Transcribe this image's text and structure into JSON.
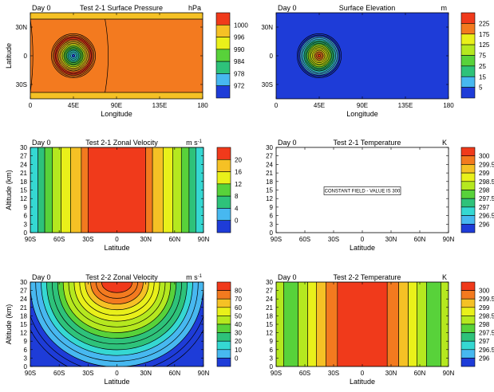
{
  "chart_data": [
    {
      "type": "contour",
      "panel_label": "Day 0",
      "title": "Test 2-1 Surface Pressure",
      "units": "hPa",
      "xlabel": "Longitude",
      "ylabel": "Latitude",
      "xlim": [
        0,
        180
      ],
      "ylim": [
        -45,
        45
      ],
      "x_ticks": [
        {
          "value": 0,
          "label": "0"
        },
        {
          "value": 45,
          "label": "45E"
        },
        {
          "value": 90,
          "label": "90E"
        },
        {
          "value": 135,
          "label": "135E"
        },
        {
          "value": 180,
          "label": "180"
        }
      ],
      "y_ticks": [
        {
          "value": 30,
          "label": "30N"
        },
        {
          "value": 0,
          "label": "0"
        },
        {
          "value": -30,
          "label": "30S"
        }
      ],
      "colorbar": {
        "labels": [
          "1000",
          "996",
          "990",
          "984",
          "978",
          "972"
        ],
        "colors": [
          "#f03a1b",
          "#f37a1f",
          "#f5c125",
          "#e9f01a",
          "#b5e81f",
          "#58d23a",
          "#2ec27a",
          "#35d8d2",
          "#47b8f0",
          "#1e3cd8"
        ]
      },
      "field": {
        "background_value": 1002,
        "background_color": "#f37a1f",
        "mountain_center": [
          45,
          0
        ],
        "radius_deg": 20,
        "min_value": 970
      }
    },
    {
      "type": "contour",
      "panel_label": "Day 0",
      "title": "Surface Elevation",
      "units": "m",
      "xlabel": "Longitude",
      "ylabel": "",
      "xlim": [
        0,
        180
      ],
      "ylim": [
        -45,
        45
      ],
      "x_ticks": [
        {
          "value": 0,
          "label": "0"
        },
        {
          "value": 45,
          "label": "45E"
        },
        {
          "value": 90,
          "label": "90E"
        },
        {
          "value": 135,
          "label": "135E"
        },
        {
          "value": 180,
          "label": "180"
        }
      ],
      "y_ticks": [
        {
          "value": 30,
          "label": "30N"
        },
        {
          "value": 0,
          "label": "0"
        },
        {
          "value": -30,
          "label": "30S"
        }
      ],
      "colorbar": {
        "labels": [
          "225",
          "175",
          "125",
          "75",
          "25",
          "15",
          "5"
        ],
        "colors": [
          "#f03a1b",
          "#f37a1f",
          "#f5c125",
          "#e9f01a",
          "#b5e81f",
          "#58d23a",
          "#2ec27a",
          "#35d8d2",
          "#47b8f0",
          "#1e3cd8"
        ]
      },
      "field": {
        "background_value": 0,
        "background_color": "#1e3cd8",
        "mountain_center": [
          45,
          0
        ],
        "radius_deg": 20,
        "max_value": 250
      }
    },
    {
      "type": "vertical_contour",
      "panel_label": "Day 0",
      "title": "Test 2-1 Zonal Velocity",
      "units": "m s",
      "units_exponent": "-1",
      "xlabel": "Latitude",
      "ylabel": "Altitude (km)",
      "xlim": [
        -90,
        90
      ],
      "ylim": [
        0,
        30
      ],
      "x_ticks": [
        {
          "value": -90,
          "label": "90S"
        },
        {
          "value": -60,
          "label": "60S"
        },
        {
          "value": -30,
          "label": "30S"
        },
        {
          "value": 0,
          "label": "0"
        },
        {
          "value": 30,
          "label": "30N"
        },
        {
          "value": 60,
          "label": "60N"
        },
        {
          "value": 90,
          "label": "90N"
        }
      ],
      "y_ticks": [
        0,
        3,
        6,
        9,
        12,
        15,
        18,
        21,
        24,
        27,
        30
      ],
      "colorbar": {
        "labels": [
          "20",
          "16",
          "12",
          "8",
          "4",
          "0"
        ],
        "colors": [
          "#f03a1b",
          "#f37a1f",
          "#f5c125",
          "#e9f01a",
          "#b5e81f",
          "#58d23a",
          "#2ec27a",
          "#35d8d2",
          "#47b8f0",
          "#1e3cd8"
        ]
      },
      "bands": [
        {
          "from": -90,
          "to": -82,
          "color": "#35d8d2"
        },
        {
          "from": -82,
          "to": -75,
          "color": "#2ec27a"
        },
        {
          "from": -75,
          "to": -67,
          "color": "#58d23a"
        },
        {
          "from": -67,
          "to": -58,
          "color": "#b5e81f"
        },
        {
          "from": -58,
          "to": -48,
          "color": "#e9f01a"
        },
        {
          "from": -48,
          "to": -37,
          "color": "#f5c125"
        },
        {
          "from": -37,
          "to": -30,
          "color": "#f37a1f"
        },
        {
          "from": -30,
          "to": 30,
          "color": "#f03a1b"
        },
        {
          "from": 30,
          "to": 37,
          "color": "#f37a1f"
        },
        {
          "from": 37,
          "to": 48,
          "color": "#f5c125"
        },
        {
          "from": 48,
          "to": 58,
          "color": "#e9f01a"
        },
        {
          "from": 58,
          "to": 67,
          "color": "#b5e81f"
        },
        {
          "from": 67,
          "to": 75,
          "color": "#58d23a"
        },
        {
          "from": 75,
          "to": 82,
          "color": "#2ec27a"
        },
        {
          "from": 82,
          "to": 90,
          "color": "#35d8d2"
        }
      ]
    },
    {
      "type": "vertical_contour",
      "panel_label": "Day 0",
      "title": "Test 2-1 Temperature",
      "units": "K",
      "xlabel": "Latitude",
      "ylabel": "",
      "xlim": [
        -90,
        90
      ],
      "ylim": [
        0,
        30
      ],
      "x_ticks": [
        {
          "value": -90,
          "label": "90S"
        },
        {
          "value": -60,
          "label": "60S"
        },
        {
          "value": -30,
          "label": "30S"
        },
        {
          "value": 0,
          "label": "0"
        },
        {
          "value": 30,
          "label": "30N"
        },
        {
          "value": 60,
          "label": "60N"
        },
        {
          "value": 90,
          "label": "90N"
        }
      ],
      "y_ticks": [
        0,
        3,
        6,
        9,
        12,
        15,
        18,
        21,
        24,
        27,
        30
      ],
      "colorbar": {
        "labels": [
          "300",
          "299.5",
          "299",
          "298.5",
          "298",
          "297.5",
          "297",
          "296.5",
          "296"
        ],
        "colors": [
          "#f03a1b",
          "#f37a1f",
          "#f5c125",
          "#e9f01a",
          "#b5e81f",
          "#58d23a",
          "#2ec27a",
          "#35d8d2",
          "#47b8f0",
          "#1e3cd8"
        ]
      },
      "annotation": "CONSTANT FIELD - VALUE IS 300",
      "constant_value": 300
    },
    {
      "type": "vertical_contour",
      "panel_label": "Day 0",
      "title": "Test 2-2 Zonal Velocity",
      "units": "m s",
      "units_exponent": "-1",
      "xlabel": "Latitude",
      "ylabel": "Altitude (km)",
      "xlim": [
        -90,
        90
      ],
      "ylim": [
        0,
        30
      ],
      "x_ticks": [
        {
          "value": -90,
          "label": "90S"
        },
        {
          "value": -60,
          "label": "60S"
        },
        {
          "value": -30,
          "label": "30S"
        },
        {
          "value": 0,
          "label": "0"
        },
        {
          "value": 30,
          "label": "30N"
        },
        {
          "value": 60,
          "label": "60N"
        },
        {
          "value": 90,
          "label": "90N"
        }
      ],
      "y_ticks": [
        0,
        3,
        6,
        9,
        12,
        15,
        18,
        21,
        24,
        27,
        30
      ],
      "colorbar": {
        "labels": [
          "80",
          "70",
          "60",
          "50",
          "40",
          "30",
          "20",
          "10",
          "0"
        ],
        "colors": [
          "#f03a1b",
          "#f37a1f",
          "#f5c125",
          "#e9f01a",
          "#b5e81f",
          "#58d23a",
          "#2ec27a",
          "#35d8d2",
          "#47b8f0",
          "#1e3cd8"
        ]
      },
      "max_value": 85
    },
    {
      "type": "vertical_contour",
      "panel_label": "Day 0",
      "title": "Test 2-2 Temperature",
      "units": "K",
      "xlabel": "Latitude",
      "ylabel": "",
      "xlim": [
        -90,
        90
      ],
      "ylim": [
        0,
        30
      ],
      "x_ticks": [
        {
          "value": -90,
          "label": "90S"
        },
        {
          "value": -60,
          "label": "60S"
        },
        {
          "value": -30,
          "label": "30S"
        },
        {
          "value": 0,
          "label": "0"
        },
        {
          "value": 30,
          "label": "30N"
        },
        {
          "value": 60,
          "label": "60N"
        },
        {
          "value": 90,
          "label": "90N"
        }
      ],
      "y_ticks": [
        0,
        3,
        6,
        9,
        12,
        15,
        18,
        21,
        24,
        27,
        30
      ],
      "colorbar": {
        "labels": [
          "300",
          "299.5",
          "299",
          "298.5",
          "298",
          "297.5",
          "297",
          "296.5",
          "296"
        ],
        "colors": [
          "#f03a1b",
          "#f37a1f",
          "#f5c125",
          "#e9f01a",
          "#b5e81f",
          "#58d23a",
          "#2ec27a",
          "#35d8d2",
          "#47b8f0",
          "#1e3cd8"
        ]
      },
      "bands": [
        {
          "from": -90,
          "to": -82,
          "color": "#b5e81f"
        },
        {
          "from": -82,
          "to": -67,
          "color": "#58d23a"
        },
        {
          "from": -67,
          "to": -57,
          "color": "#b5e81f"
        },
        {
          "from": -57,
          "to": -48,
          "color": "#e9f01a"
        },
        {
          "from": -48,
          "to": -38,
          "color": "#f5c125"
        },
        {
          "from": -38,
          "to": -26,
          "color": "#f37a1f"
        },
        {
          "from": -26,
          "to": 26,
          "color": "#f03a1b"
        },
        {
          "from": 26,
          "to": 38,
          "color": "#f37a1f"
        },
        {
          "from": 38,
          "to": 48,
          "color": "#f5c125"
        },
        {
          "from": 48,
          "to": 57,
          "color": "#e9f01a"
        },
        {
          "from": 57,
          "to": 67,
          "color": "#b5e81f"
        },
        {
          "from": 67,
          "to": 82,
          "color": "#58d23a"
        },
        {
          "from": 82,
          "to": 90,
          "color": "#b5e81f"
        }
      ]
    }
  ]
}
